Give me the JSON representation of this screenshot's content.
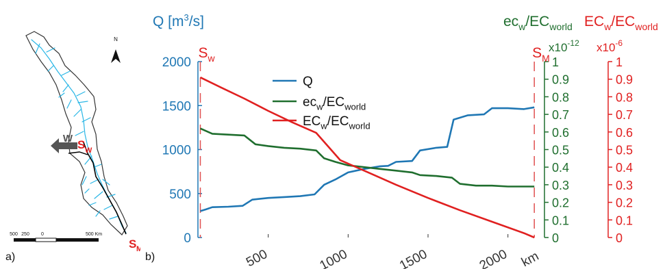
{
  "panel_a": {
    "label": "a)",
    "north": "N",
    "outlet_label": "W",
    "site_w": {
      "main": "S",
      "sub": "W"
    },
    "site_m": {
      "main": "S",
      "sub": "M"
    },
    "scale_ticks": [
      "500",
      "250",
      "0",
      "500 Km"
    ],
    "colors": {
      "river": "#29b6e6",
      "basin_fill": "#ffffff",
      "outline": "#333333",
      "path": "#000000",
      "site": "#e02020",
      "arrow": "#555555"
    }
  },
  "panel_b_label": "b)",
  "chart_data": {
    "type": "line",
    "xlabel": "km",
    "xlim": [
      60,
      2220
    ],
    "xticks": [
      500,
      1000,
      1500,
      2000
    ],
    "sites": [
      {
        "name": "S",
        "sub": "w",
        "x": 75
      },
      {
        "name": "S",
        "sub": "M",
        "x": 2165
      }
    ],
    "axes": [
      {
        "id": "Q",
        "label": "Q [m³/s]",
        "label_main": "Q [m",
        "label_sup": "3",
        "label_tail": "/s]",
        "color": "#1f77b4",
        "ylim": [
          0,
          2000
        ],
        "ticks": [
          "0",
          "500",
          "1000",
          "1500",
          "2000"
        ]
      },
      {
        "id": "ec",
        "label_parts": [
          "ec",
          "w",
          "/EC",
          "world"
        ],
        "color": "#1f6e2e",
        "multiplier": "x10",
        "multiplier_exp": "-12",
        "ylim": [
          0,
          1
        ],
        "ticks": [
          "0",
          "0.1",
          "0.2",
          "0.3",
          "0.4",
          "0.5",
          "0.6",
          "0.7",
          "0.8",
          "0.9",
          "1"
        ]
      },
      {
        "id": "EC",
        "label_parts": [
          "EC",
          "w",
          "/EC",
          "world"
        ],
        "color": "#e02020",
        "multiplier": "x10",
        "multiplier_exp": "-6",
        "ylim": [
          0,
          1
        ],
        "ticks": [
          "0",
          "0.1",
          "0.2",
          "0.3",
          "0.4",
          "0.5",
          "0.6",
          "0.7",
          "0.8",
          "0.9",
          "1"
        ]
      }
    ],
    "legend_position": "top-center",
    "series": [
      {
        "name": "Q",
        "legend_parts": [
          "Q"
        ],
        "axis": "Q",
        "color": "#1f77b4",
        "points": [
          [
            75,
            300
          ],
          [
            110,
            320
          ],
          [
            150,
            345
          ],
          [
            250,
            350
          ],
          [
            340,
            360
          ],
          [
            400,
            430
          ],
          [
            500,
            450
          ],
          [
            600,
            460
          ],
          [
            700,
            470
          ],
          [
            790,
            490
          ],
          [
            850,
            600
          ],
          [
            920,
            660
          ],
          [
            1000,
            740
          ],
          [
            1100,
            780
          ],
          [
            1200,
            810
          ],
          [
            1250,
            815
          ],
          [
            1300,
            860
          ],
          [
            1400,
            870
          ],
          [
            1450,
            990
          ],
          [
            1550,
            1020
          ],
          [
            1620,
            1030
          ],
          [
            1660,
            1340
          ],
          [
            1750,
            1390
          ],
          [
            1850,
            1400
          ],
          [
            1900,
            1470
          ],
          [
            2000,
            1470
          ],
          [
            2100,
            1460
          ],
          [
            2165,
            1480
          ]
        ]
      },
      {
        "name": "ec_w/EC_world",
        "legend_parts": [
          "ec",
          "w",
          "/EC",
          "world"
        ],
        "axis": "ec",
        "color": "#1f6e2e",
        "points": [
          [
            75,
            0.62
          ],
          [
            150,
            0.59
          ],
          [
            250,
            0.585
          ],
          [
            350,
            0.58
          ],
          [
            420,
            0.53
          ],
          [
            500,
            0.52
          ],
          [
            600,
            0.51
          ],
          [
            700,
            0.505
          ],
          [
            800,
            0.495
          ],
          [
            850,
            0.45
          ],
          [
            920,
            0.43
          ],
          [
            1000,
            0.41
          ],
          [
            1100,
            0.4
          ],
          [
            1200,
            0.39
          ],
          [
            1300,
            0.38
          ],
          [
            1400,
            0.37
          ],
          [
            1450,
            0.355
          ],
          [
            1550,
            0.35
          ],
          [
            1650,
            0.34
          ],
          [
            1700,
            0.305
          ],
          [
            1800,
            0.295
          ],
          [
            1900,
            0.295
          ],
          [
            2000,
            0.29
          ],
          [
            2100,
            0.29
          ],
          [
            2165,
            0.29
          ]
        ]
      },
      {
        "name": "EC_w/EC_world",
        "legend_parts": [
          "EC",
          "w",
          "/EC",
          "world"
        ],
        "axis": "EC",
        "color": "#e02020",
        "points": [
          [
            75,
            0.91
          ],
          [
            200,
            0.855
          ],
          [
            350,
            0.79
          ],
          [
            500,
            0.72
          ],
          [
            650,
            0.655
          ],
          [
            800,
            0.595
          ],
          [
            950,
            0.44
          ],
          [
            1100,
            0.38
          ],
          [
            1300,
            0.3
          ],
          [
            1500,
            0.225
          ],
          [
            1700,
            0.155
          ],
          [
            1900,
            0.09
          ],
          [
            2100,
            0.025
          ],
          [
            2165,
            0.0
          ]
        ]
      }
    ]
  }
}
